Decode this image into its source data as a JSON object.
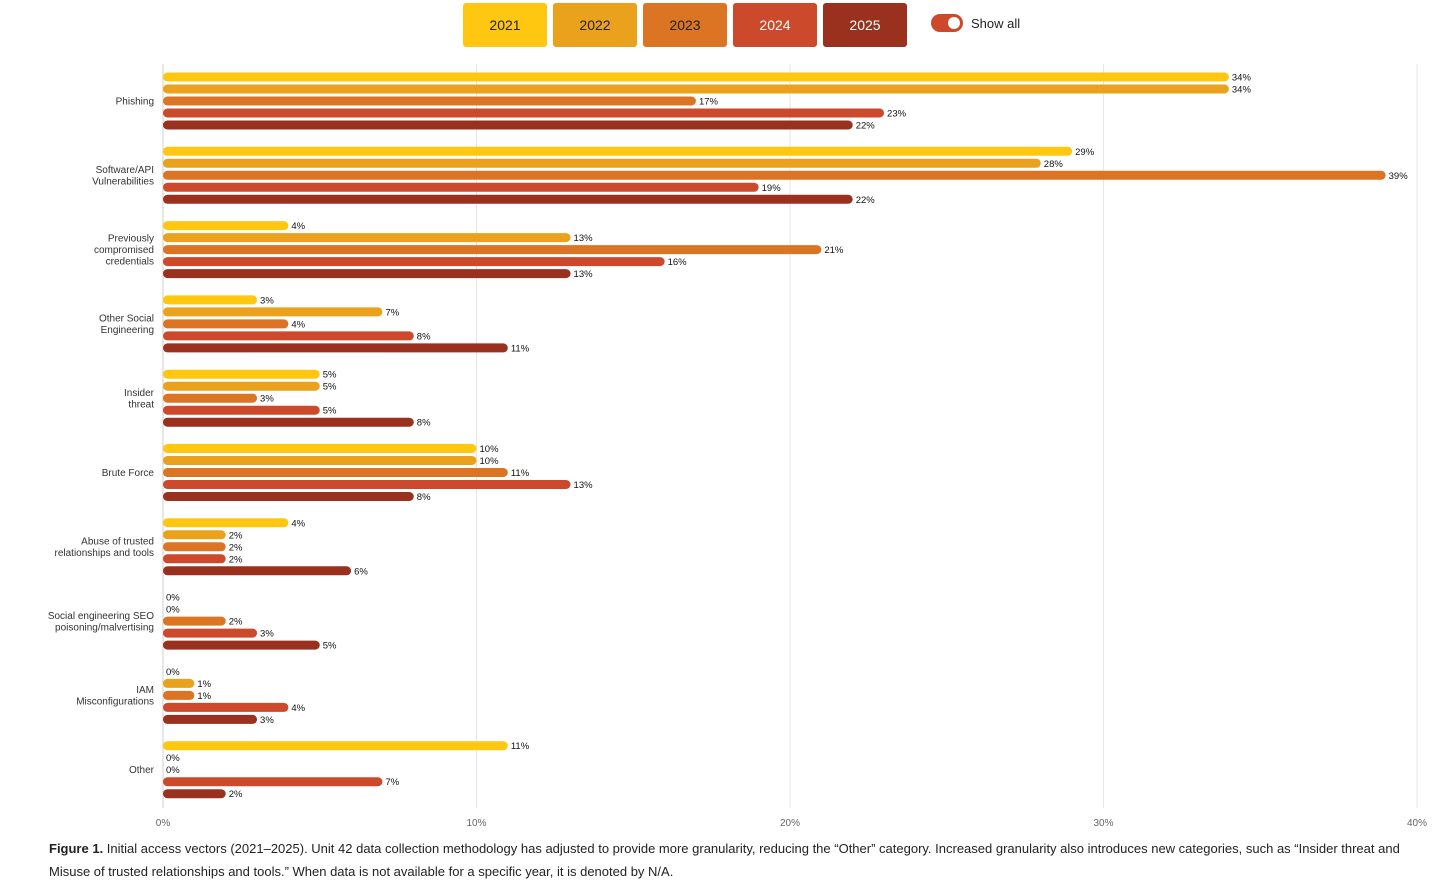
{
  "legend": {
    "years": [
      {
        "label": "2021",
        "color": "#FFC710",
        "text_color": "#222222"
      },
      {
        "label": "2022",
        "color": "#EAA11C",
        "text_color": "#222222"
      },
      {
        "label": "2023",
        "color": "#DB7524",
        "text_color": "#222222"
      },
      {
        "label": "2024",
        "color": "#CC4A2B",
        "text_color": "#ffffff"
      },
      {
        "label": "2025",
        "color": "#9A311F",
        "text_color": "#ffffff"
      }
    ],
    "toggle_label": "Show all",
    "toggle_on": true,
    "toggle_color": "#CC4A2B"
  },
  "chart_data": {
    "type": "bar",
    "orientation": "horizontal",
    "categories": [
      [
        "Phishing"
      ],
      [
        "Software/API",
        "Vulnerabilities"
      ],
      [
        "Previously",
        "compromised",
        "credentials"
      ],
      [
        "Other Social",
        "Engineering"
      ],
      [
        "Insider",
        "threat"
      ],
      [
        "Brute Force"
      ],
      [
        "Abuse of trusted",
        "relationships and tools"
      ],
      [
        "Social engineering SEO",
        "poisoning/malvertising"
      ],
      [
        "IAM",
        "Misconfigurations"
      ],
      [
        "Other"
      ]
    ],
    "series": [
      {
        "name": "2021",
        "color": "#FFC710",
        "values": [
          34,
          29,
          4,
          3,
          5,
          10,
          4,
          0,
          0,
          11
        ]
      },
      {
        "name": "2022",
        "color": "#EAA11C",
        "values": [
          34,
          28,
          13,
          7,
          5,
          10,
          2,
          0,
          1,
          0
        ]
      },
      {
        "name": "2023",
        "color": "#DB7524",
        "values": [
          17,
          39,
          21,
          4,
          3,
          11,
          2,
          2,
          1,
          0
        ]
      },
      {
        "name": "2024",
        "color": "#CC4A2B",
        "values": [
          23,
          19,
          16,
          8,
          5,
          13,
          2,
          3,
          4,
          7
        ]
      },
      {
        "name": "2025",
        "color": "#9A311F",
        "values": [
          22,
          22,
          13,
          11,
          8,
          8,
          6,
          5,
          3,
          2
        ]
      }
    ],
    "value_suffix": "%",
    "xlim": [
      0,
      40
    ],
    "xticks": [
      "0%",
      "10%",
      "20%",
      "30%",
      "40%"
    ],
    "grid": true
  },
  "caption": {
    "label": "Figure 1.",
    "text": " Initial access vectors (2021–2025). Unit 42 data collection methodology has adjusted to provide more granularity, reducing the “Other” category. Increased granularity also introduces new categories, such as “Insider threat and Misuse of trusted relationships and tools.” When data is not available for a specific year, it is denoted by N/A."
  }
}
